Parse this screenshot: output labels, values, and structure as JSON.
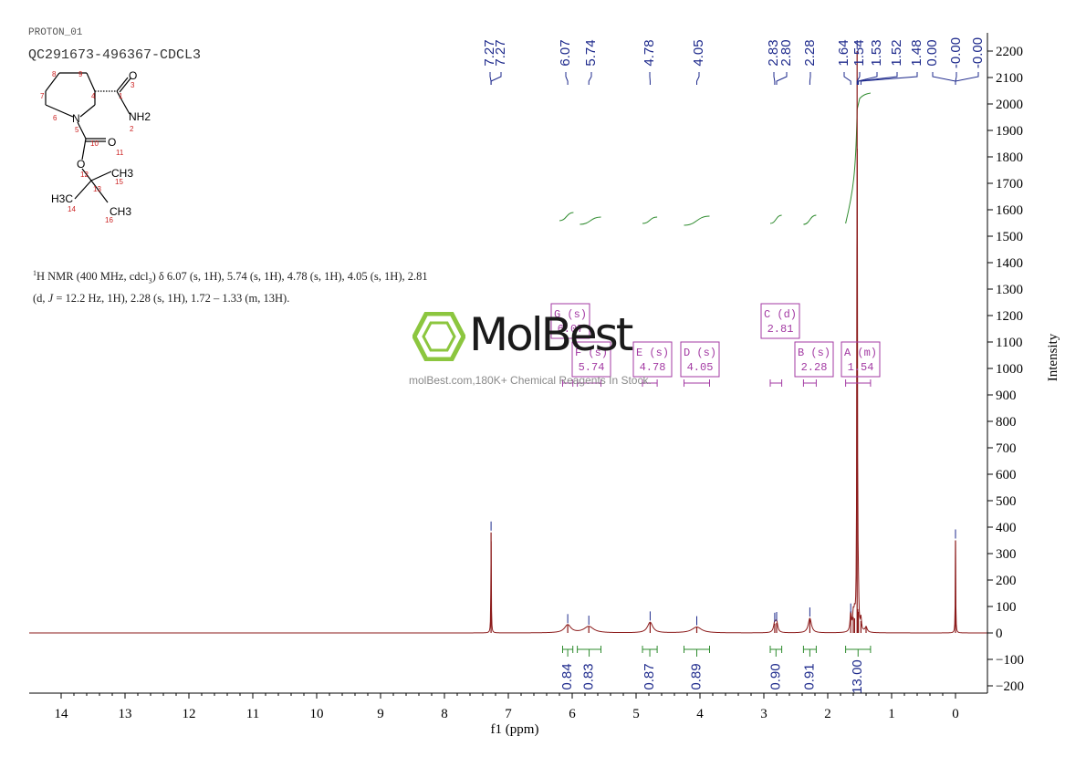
{
  "header": {
    "sample_id": "PROTON_01",
    "sample_name": "QC291673-496367-CDCL3"
  },
  "nmr_description": {
    "text_a": "H NMR (400 MHz, cdcl",
    "sub_3": "3",
    "text_b": ") δ 6.07 (s, 1H), 5.74 (s, 1H), 4.78 (s, 1H), 4.05 (s, 1H), 2.81 (d, ",
    "j_italic": "J",
    "text_c": " = 12.2 Hz, 1H), 2.28 (s, 1H), 1.72 – 1.33 (m, 13H).",
    "sup_1": "1"
  },
  "watermark": {
    "brand": "MolBest",
    "tagline": "molBest.com,180K+ Chemical Reagents In Stock."
  },
  "structure": {
    "labels": [
      "1",
      "2",
      "3",
      "4",
      "5",
      "6",
      "7",
      "8",
      "9",
      "10",
      "11",
      "12",
      "13",
      "14",
      "15",
      "16"
    ],
    "atoms": [
      "O",
      "NH2",
      "N",
      "O",
      "O",
      "H3C",
      "CH3",
      "CH3"
    ]
  },
  "chart_data": {
    "type": "line",
    "xlabel": "f1 (ppm)",
    "ylabel": "Intensity",
    "xlim": [
      14.5,
      -0.5
    ],
    "ylim": [
      -200,
      2250
    ],
    "x_ticks": [
      14,
      13,
      12,
      11,
      10,
      9,
      8,
      7,
      6,
      5,
      4,
      3,
      2,
      1,
      0
    ],
    "y_ticks": [
      -200,
      -100,
      0,
      100,
      200,
      300,
      400,
      500,
      600,
      700,
      800,
      900,
      1000,
      1100,
      1200,
      1300,
      1400,
      1500,
      1600,
      1700,
      1800,
      1900,
      2000,
      2100,
      2200
    ],
    "peak_labels": [
      "7.27",
      "7.27",
      "6.07",
      "5.74",
      "4.78",
      "4.05",
      "2.83",
      "2.80",
      "2.28",
      "1.64",
      "1.54",
      "1.53",
      "1.52",
      "1.48",
      "0.00",
      "-0.00",
      "-0.00"
    ],
    "peaks": [
      {
        "ppm": 7.27,
        "height": 380,
        "width": 0.004
      },
      {
        "ppm": 6.07,
        "height": 30,
        "width": 0.06
      },
      {
        "ppm": 5.74,
        "height": 24,
        "width": 0.09
      },
      {
        "ppm": 4.78,
        "height": 40,
        "width": 0.05
      },
      {
        "ppm": 4.05,
        "height": 22,
        "width": 0.09
      },
      {
        "ppm": 2.83,
        "height": 35,
        "width": 0.02
      },
      {
        "ppm": 2.8,
        "height": 38,
        "width": 0.02
      },
      {
        "ppm": 2.28,
        "height": 55,
        "width": 0.03
      },
      {
        "ppm": 1.64,
        "height": 70,
        "width": 0.012
      },
      {
        "ppm": 1.6,
        "height": 60,
        "width": 0.012
      },
      {
        "ppm": 1.58,
        "height": 55,
        "width": 0.012
      },
      {
        "ppm": 1.54,
        "height": 2200,
        "width": 0.005
      },
      {
        "ppm": 1.53,
        "height": 90,
        "width": 0.008
      },
      {
        "ppm": 1.52,
        "height": 80,
        "width": 0.008
      },
      {
        "ppm": 1.48,
        "height": 45,
        "width": 0.01
      },
      {
        "ppm": 1.4,
        "height": 20,
        "width": 0.02
      },
      {
        "ppm": 0.0,
        "height": 350,
        "width": 0.004
      }
    ],
    "multiplets": [
      {
        "letter": "G",
        "type": "s",
        "shift": "6.07",
        "range": [
          6.15,
          5.99
        ]
      },
      {
        "letter": "F",
        "type": "s",
        "shift": "5.74",
        "range": [
          5.92,
          5.55
        ]
      },
      {
        "letter": "E",
        "type": "s",
        "shift": "4.78",
        "range": [
          4.9,
          4.67
        ]
      },
      {
        "letter": "D",
        "type": "s",
        "shift": "4.05",
        "range": [
          4.25,
          3.85
        ]
      },
      {
        "letter": "C",
        "type": "d",
        "shift": "2.81",
        "range": [
          2.9,
          2.72
        ]
      },
      {
        "letter": "B",
        "type": "s",
        "shift": "2.28",
        "range": [
          2.38,
          2.18
        ]
      },
      {
        "letter": "A",
        "type": "m",
        "shift": "1.54",
        "range": [
          1.72,
          1.33
        ]
      }
    ],
    "integrals": [
      {
        "value": "0.84",
        "range": [
          6.15,
          5.99
        ]
      },
      {
        "value": "0.83",
        "range": [
          5.92,
          5.55
        ]
      },
      {
        "value": "0.87",
        "range": [
          4.9,
          4.67
        ]
      },
      {
        "value": "0.89",
        "range": [
          4.25,
          3.85
        ]
      },
      {
        "value": "0.90",
        "range": [
          2.9,
          2.72
        ]
      },
      {
        "value": "0.91",
        "range": [
          2.38,
          2.18
        ]
      },
      {
        "value": "13.00",
        "range": [
          1.72,
          1.33
        ]
      }
    ],
    "colors": {
      "spectrum": "#8b1a1a",
      "peak_label": "#1e2a8c",
      "multiplet_box": "#a33aa3",
      "integral": "#2e8b2e",
      "axis": "#000000"
    }
  }
}
